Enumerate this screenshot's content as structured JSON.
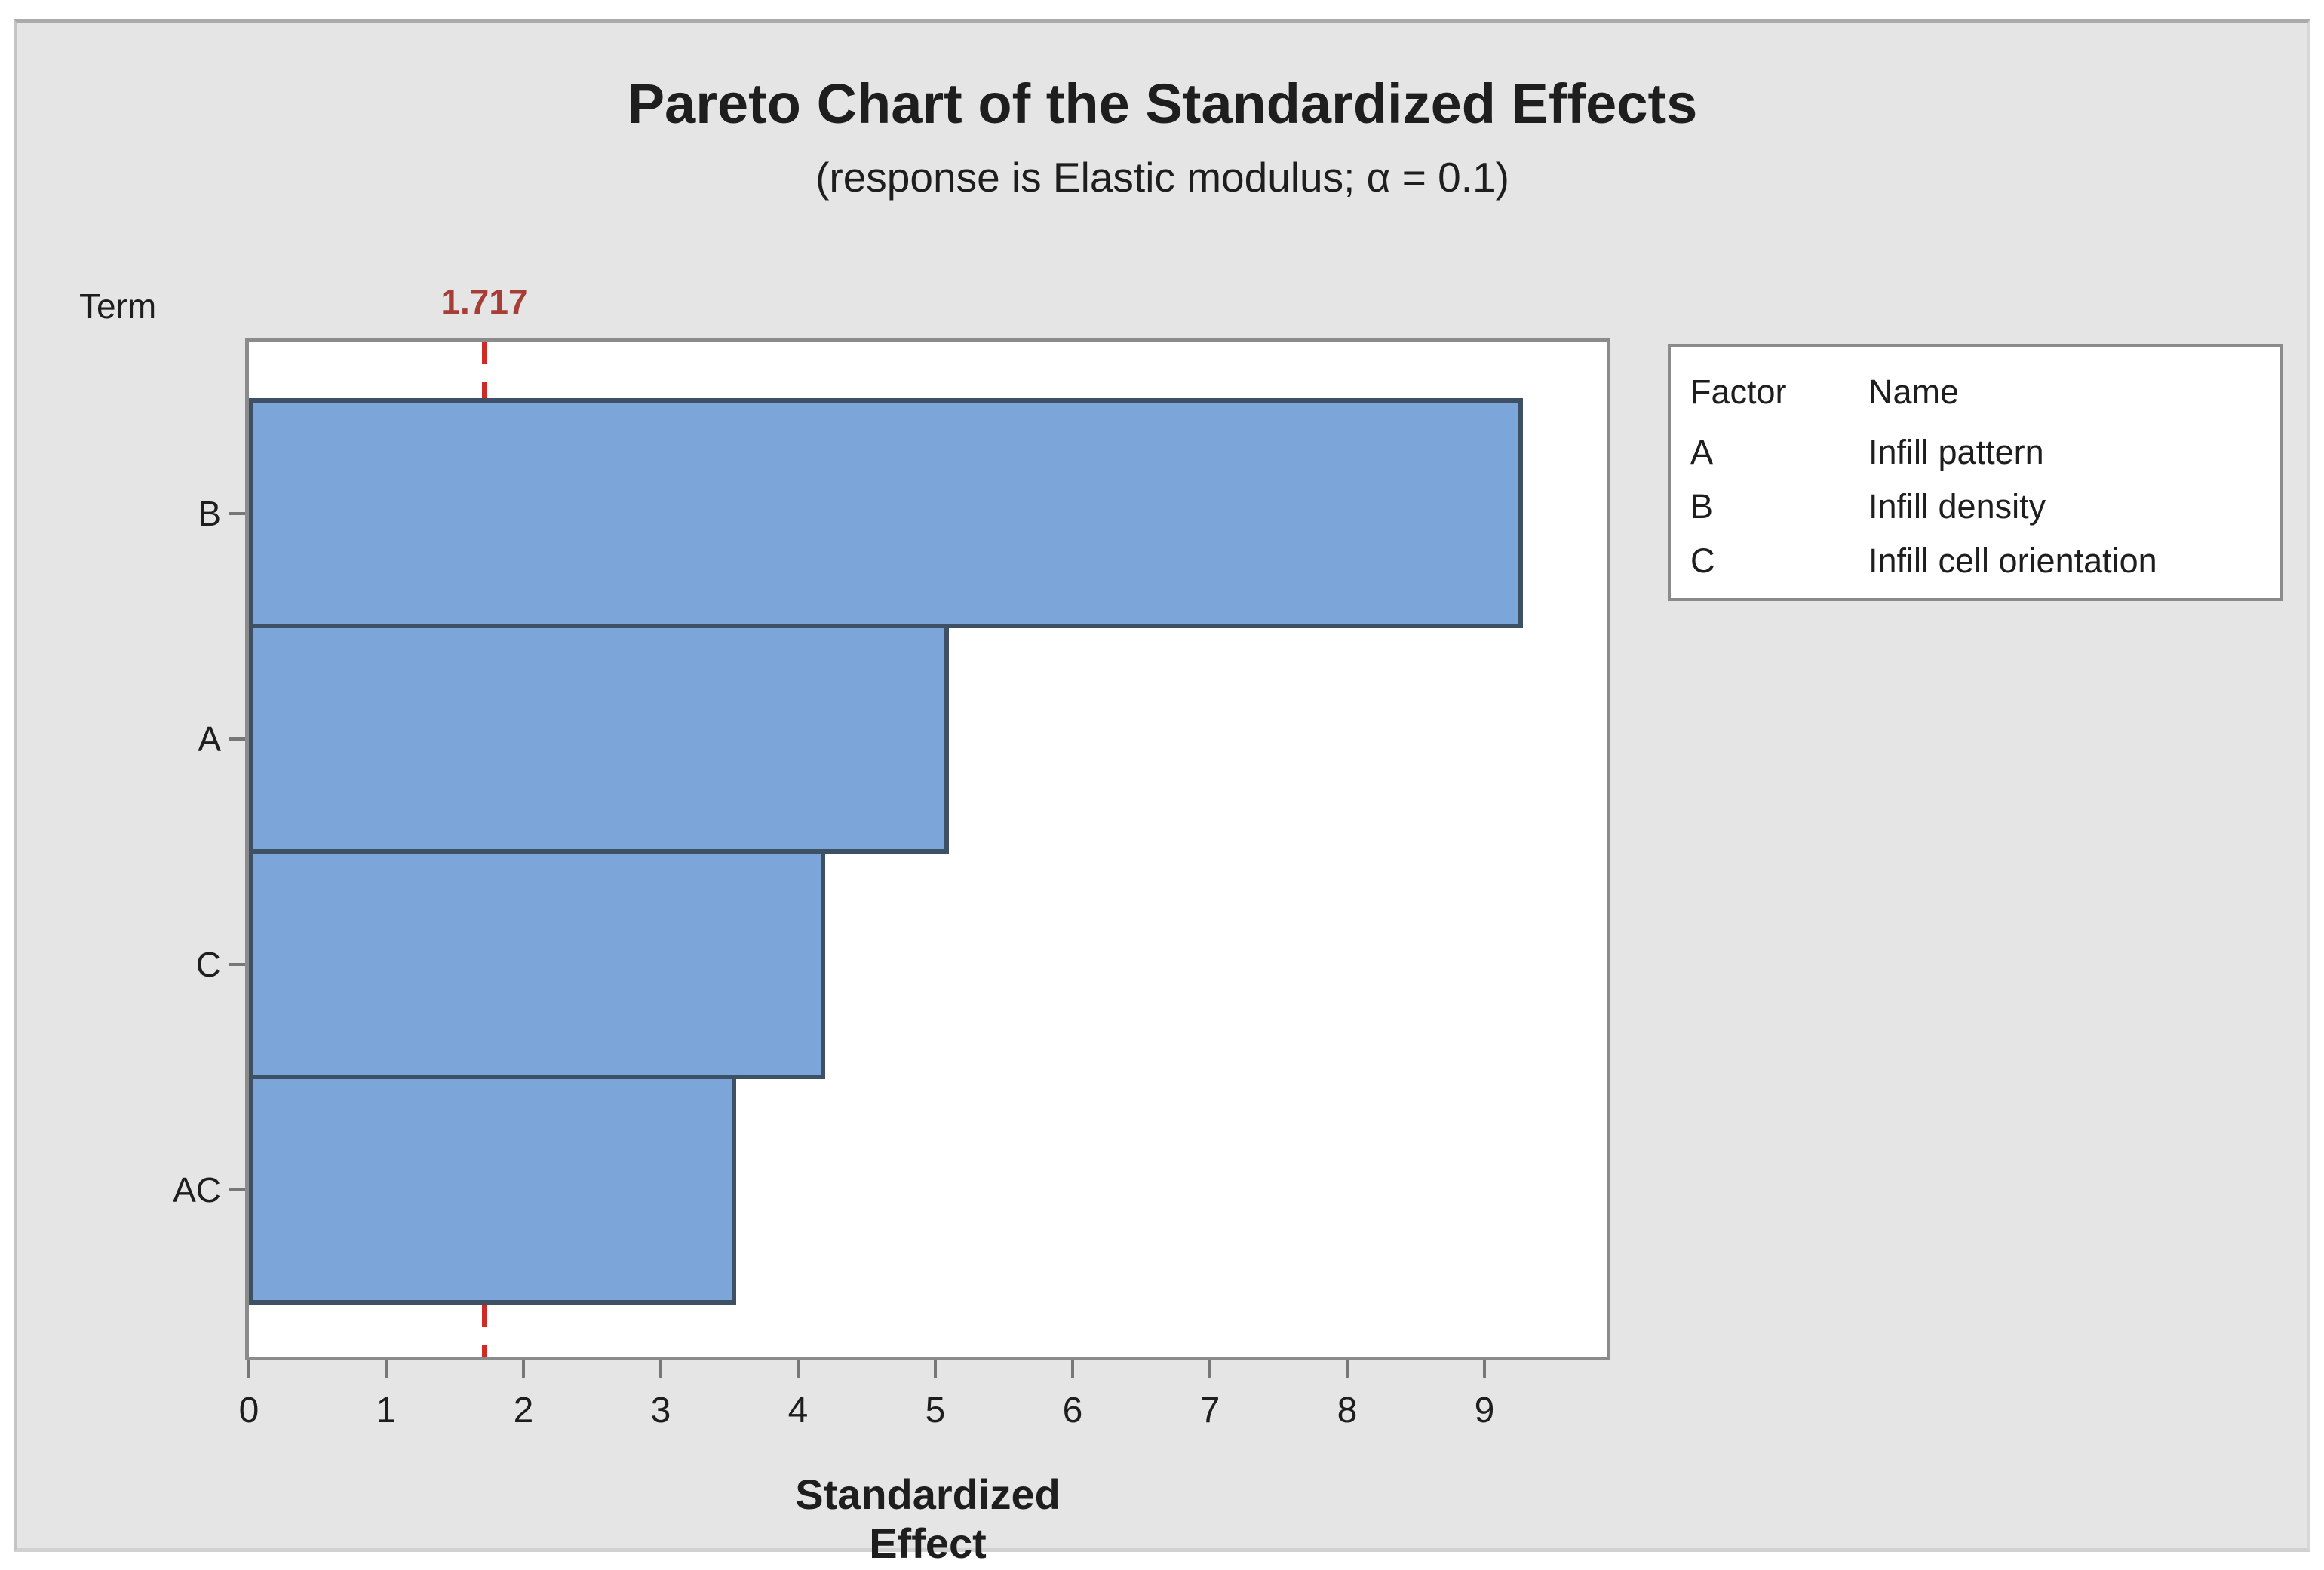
{
  "chart_data": {
    "type": "bar",
    "orientation": "horizontal",
    "title": "Pareto Chart of the Standardized Effects",
    "subtitle": "(response is Elastic modulus; α = 0.1)",
    "xlabel": "Standardized Effect",
    "ylabel": "Term",
    "categories": [
      "B",
      "A",
      "C",
      "AC"
    ],
    "values": [
      9.28,
      5.1,
      4.2,
      3.55
    ],
    "xlim": [
      0,
      9.89
    ],
    "x_ticks": [
      0,
      1,
      2,
      3,
      4,
      5,
      6,
      7,
      8,
      9
    ],
    "grid": false,
    "reference_line": {
      "value": 1.717,
      "label": "1.717",
      "style": "dashed"
    },
    "legend": {
      "position": "right",
      "headers": [
        "Factor",
        "Name"
      ],
      "rows": [
        [
          "A",
          "Infill pattern"
        ],
        [
          "B",
          "Infill density"
        ],
        [
          "C",
          "Infill cell orientation"
        ]
      ]
    },
    "colors": {
      "bar_fill": "#7CA6DA",
      "bar_border": "#3D5064",
      "reference_line": "#CF2A24",
      "reference_label": "#A63D36",
      "panel_background": "#E5E5E5",
      "plot_background": "#FFFFFF",
      "frame": "#8B8B8B",
      "text": "#1E1E1E"
    }
  }
}
